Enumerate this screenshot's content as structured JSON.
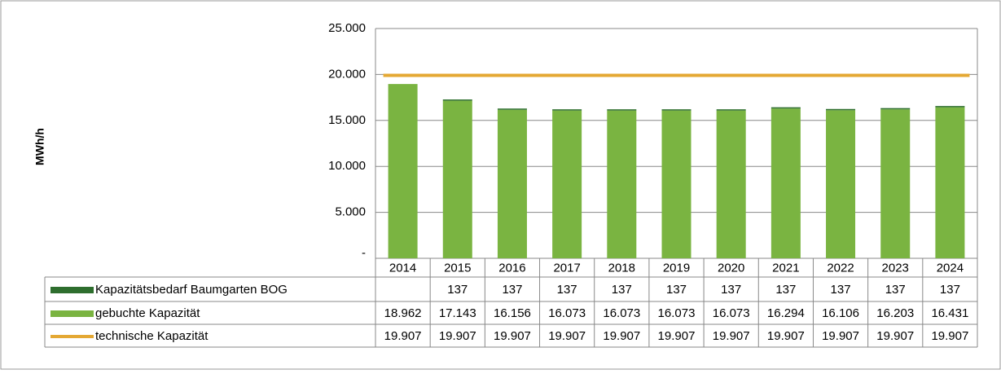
{
  "chart_data": {
    "type": "bar",
    "stacked": true,
    "y_label": "MWh/h",
    "categories": [
      "2014",
      "2015",
      "2016",
      "2017",
      "2018",
      "2019",
      "2020",
      "2021",
      "2022",
      "2023",
      "2024"
    ],
    "series": [
      {
        "name": "Kapazitätsbedarf Baumgarten BOG",
        "color": "#2e6e2e",
        "type": "bar",
        "values": [
          null,
          137,
          137,
          137,
          137,
          137,
          137,
          137,
          137,
          137,
          137
        ]
      },
      {
        "name": "gebuchte Kapazität",
        "color": "#7ab441",
        "type": "bar",
        "values": [
          18962,
          17143,
          16156,
          16073,
          16073,
          16073,
          16073,
          16294,
          16106,
          16203,
          16431
        ],
        "value_labels": [
          "18.962",
          "17.143",
          "16.156",
          "16.073",
          "16.073",
          "16.073",
          "16.073",
          "16.294",
          "16.106",
          "16.203",
          "16.431"
        ]
      },
      {
        "name": "technische Kapazität",
        "color": "#e4a833",
        "type": "line",
        "values": [
          19907,
          19907,
          19907,
          19907,
          19907,
          19907,
          19907,
          19907,
          19907,
          19907,
          19907
        ],
        "value_labels": [
          "19.907",
          "19.907",
          "19.907",
          "19.907",
          "19.907",
          "19.907",
          "19.907",
          "19.907",
          "19.907",
          "19.907",
          "19.907"
        ]
      }
    ],
    "ylim": [
      0,
      25000
    ],
    "yticks": [
      {
        "value": 0,
        "label": "-"
      },
      {
        "value": 5000,
        "label": "5.000"
      },
      {
        "value": 10000,
        "label": "10.000"
      },
      {
        "value": 15000,
        "label": "15.000"
      },
      {
        "value": 20000,
        "label": "20.000"
      },
      {
        "value": 25000,
        "label": "25.000"
      }
    ],
    "grid": true
  }
}
